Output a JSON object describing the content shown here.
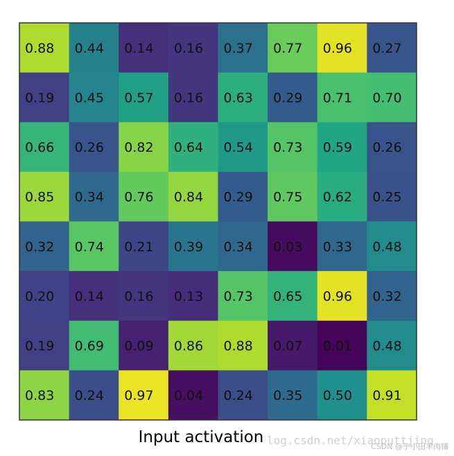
{
  "chart_data": {
    "type": "heatmap",
    "title": "Input activation",
    "colormap": "viridis",
    "value_range": [
      0,
      1
    ],
    "border_color": "#333333",
    "rows": [
      [
        "0.88",
        "0.44",
        "0.14",
        "0.16",
        "0.37",
        "0.77",
        "0.96",
        "0.27"
      ],
      [
        "0.19",
        "0.45",
        "0.57",
        "0.16",
        "0.63",
        "0.29",
        "0.71",
        "0.70"
      ],
      [
        "0.66",
        "0.26",
        "0.82",
        "0.64",
        "0.54",
        "0.73",
        "0.59",
        "0.26"
      ],
      [
        "0.85",
        "0.34",
        "0.76",
        "0.84",
        "0.29",
        "0.75",
        "0.62",
        "0.25"
      ],
      [
        "0.32",
        "0.74",
        "0.21",
        "0.39",
        "0.34",
        "0.03",
        "0.33",
        "0.48"
      ],
      [
        "0.20",
        "0.14",
        "0.16",
        "0.13",
        "0.73",
        "0.65",
        "0.96",
        "0.32"
      ],
      [
        "0.19",
        "0.69",
        "0.09",
        "0.86",
        "0.88",
        "0.07",
        "0.01",
        "0.48"
      ],
      [
        "0.83",
        "0.24",
        "0.97",
        "0.04",
        "0.24",
        "0.35",
        "0.50",
        "0.91"
      ]
    ]
  },
  "watermark": {
    "url": "log.csdn.net/xiaoputtjing",
    "credit": "CSDN @宁小田羊肉铺"
  }
}
